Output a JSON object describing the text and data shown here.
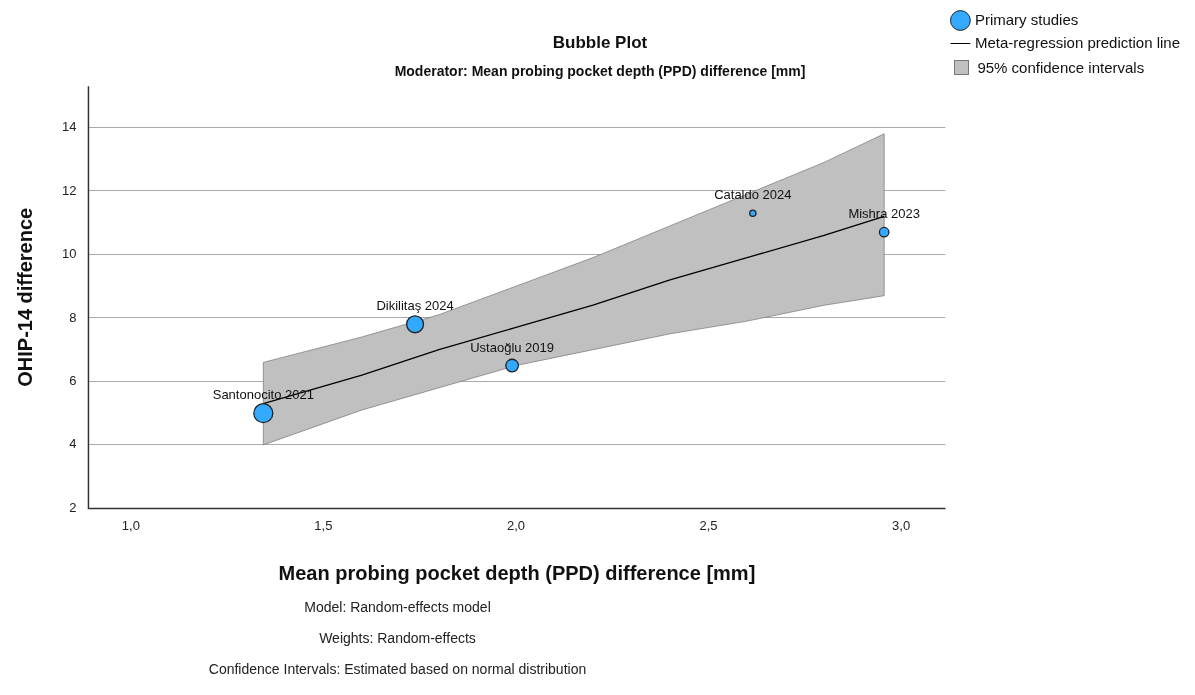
{
  "chart_data": {
    "type": "bubble",
    "title": "Bubble Plot",
    "subtitle": "Moderator: Mean probing pocket depth (PPD) difference [mm]",
    "xlabel": "Mean probing pocket depth (PPD) difference [mm]",
    "ylabel": "OHIP-14 difference",
    "xlim": [
      0.89,
      3.115
    ],
    "xticks": [
      {
        "value": 1,
        "label": "1,0"
      },
      {
        "value": 1.5,
        "label": "1,5"
      },
      {
        "value": 2,
        "label": "2,0"
      },
      {
        "value": 2.5,
        "label": "2,5"
      },
      {
        "value": 3,
        "label": "3,0"
      }
    ],
    "ylim": [
      2,
      15.3
    ],
    "yticks": [
      2,
      4,
      6,
      8,
      10,
      12,
      14
    ],
    "grid": "y",
    "legend": "top right",
    "series": [
      {
        "type": "bubble",
        "name": "Primary studies",
        "color": "#33aaff",
        "x": [
          1.344,
          1.738,
          1.99,
          2.615,
          2.956
        ],
        "values": [
          5.0,
          7.8,
          6.5,
          11.3,
          10.7
        ],
        "sizes": [
          1,
          0.79,
          0.44,
          0.11,
          0.25
        ]
      },
      {
        "type": "line",
        "name": "Meta-regression prediction line",
        "color": "#000000",
        "x": [
          1.344,
          1.6,
          1.8,
          2.0,
          2.2,
          2.4,
          2.6,
          2.8,
          2.956
        ],
        "values": [
          5.3,
          6.2,
          7.0,
          7.7,
          8.4,
          9.2,
          9.9,
          10.6,
          11.2
        ],
        "lower": [
          4.0,
          5.1,
          5.8,
          6.5,
          7.0,
          7.5,
          7.9,
          8.4,
          8.7
        ],
        "upper": [
          6.6,
          7.4,
          8.1,
          9.0,
          9.9,
          10.9,
          11.9,
          12.9,
          13.8
        ]
      }
    ],
    "annotations": [
      "95% confidence intervals",
      {
        "text": "Santonocito 2021",
        "x": 1.344,
        "y": 5.0
      },
      {
        "text": "Dikilitaş 2024",
        "x": 1.738,
        "y": 7.8
      },
      {
        "text": "Ustaoğlu 2019",
        "x": 1.99,
        "y": 6.5
      },
      {
        "text": "Cataldo 2024",
        "x": 2.615,
        "y": 11.3
      },
      {
        "text": "Mishra 2023",
        "x": 2.956,
        "y": 10.7
      },
      "Model: Random-effects model",
      "Weights: Random-effects",
      "Confidence Intervals: Estimated based on normal distribution"
    ]
  }
}
